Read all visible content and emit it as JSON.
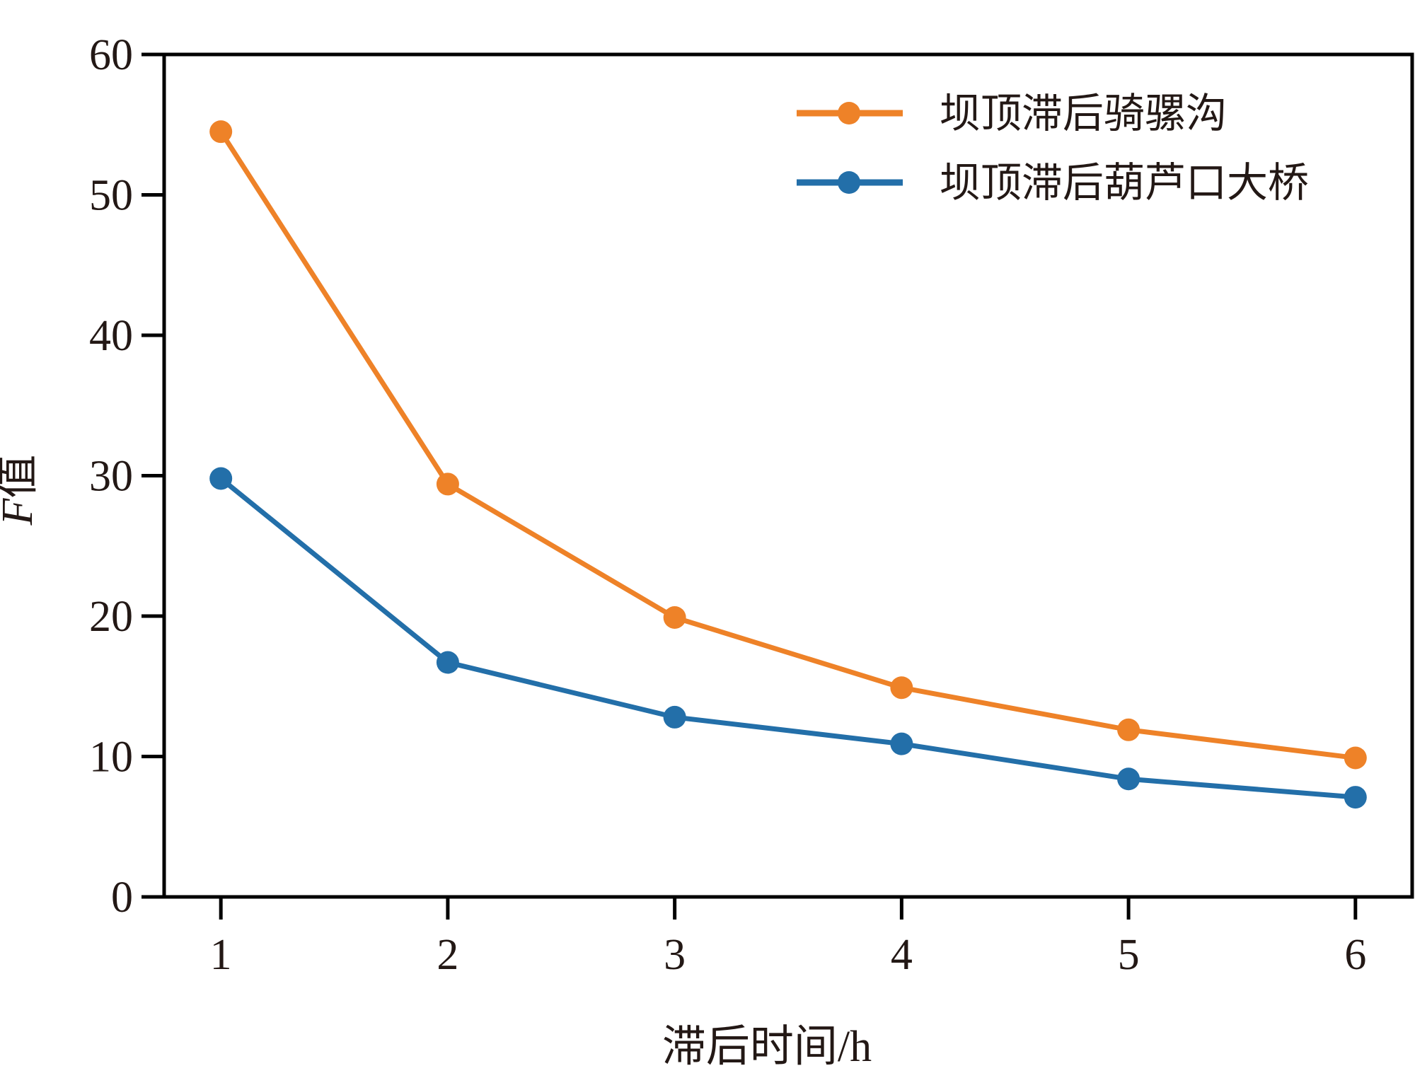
{
  "chart_data": {
    "type": "line",
    "title": "",
    "xlabel": "滞后时间/h",
    "ylabel": {
      "italic_part": "F",
      "rest": "值"
    },
    "x": [
      1,
      2,
      3,
      4,
      5,
      6
    ],
    "xticks": [
      "1",
      "2",
      "3",
      "4",
      "5",
      "6"
    ],
    "xlim": [
      0.75,
      6.25
    ],
    "ylim": [
      0,
      60
    ],
    "yticks": [
      "0",
      "10",
      "20",
      "30",
      "40",
      "50",
      "60"
    ],
    "grid": false,
    "legend_position": "top-right",
    "series": [
      {
        "name": "坝顶滞后骑骡沟",
        "color": "#EE8228",
        "values": [
          54.5,
          29.4,
          19.9,
          14.9,
          11.9,
          9.9
        ]
      },
      {
        "name": "坝顶滞后葫芦口大桥",
        "color": "#236FA9",
        "values": [
          29.8,
          16.7,
          12.8,
          10.9,
          8.4,
          7.1
        ]
      }
    ]
  }
}
